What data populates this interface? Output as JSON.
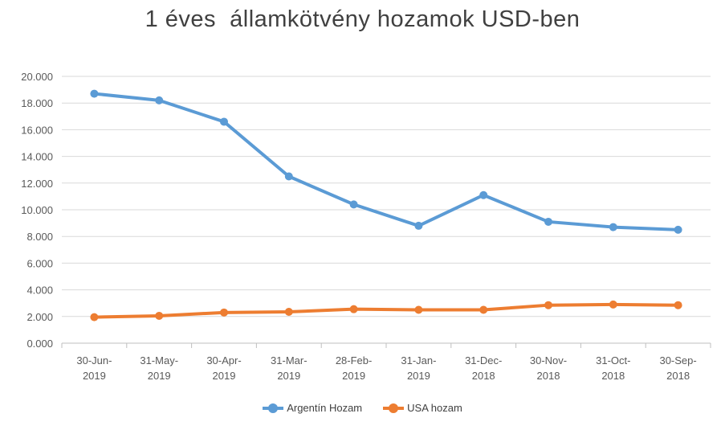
{
  "chart_data": {
    "type": "line",
    "title": "1 éves  államkötvény hozamok USD-ben",
    "xlabel": "",
    "ylabel": "",
    "categories": [
      [
        "30-Jun-",
        "2019"
      ],
      [
        "31-May-",
        "2019"
      ],
      [
        "30-Apr-",
        "2019"
      ],
      [
        "31-Mar-",
        "2019"
      ],
      [
        "28-Feb-",
        "2019"
      ],
      [
        "31-Jan-",
        "2019"
      ],
      [
        "31-Dec-",
        "2018"
      ],
      [
        "30-Nov-",
        "2018"
      ],
      [
        "31-Oct-",
        "2018"
      ],
      [
        "30-Sep-",
        "2018"
      ]
    ],
    "ylim": [
      0,
      20
    ],
    "yticks": [
      "0.000",
      "2.000",
      "4.000",
      "6.000",
      "8.000",
      "10.000",
      "12.000",
      "14.000",
      "16.000",
      "18.000",
      "20.000"
    ],
    "grid": true,
    "legend_position": "bottom",
    "series": [
      {
        "name": "Argentín Hozam",
        "color": "#5B9BD5",
        "values": [
          18.7,
          18.2,
          16.6,
          12.5,
          10.4,
          8.8,
          11.1,
          9.1,
          8.7,
          8.5
        ]
      },
      {
        "name": "USA hozam",
        "color": "#ED7D31",
        "values": [
          1.95,
          2.05,
          2.3,
          2.35,
          2.55,
          2.5,
          2.5,
          2.85,
          2.9,
          2.85
        ]
      }
    ]
  }
}
